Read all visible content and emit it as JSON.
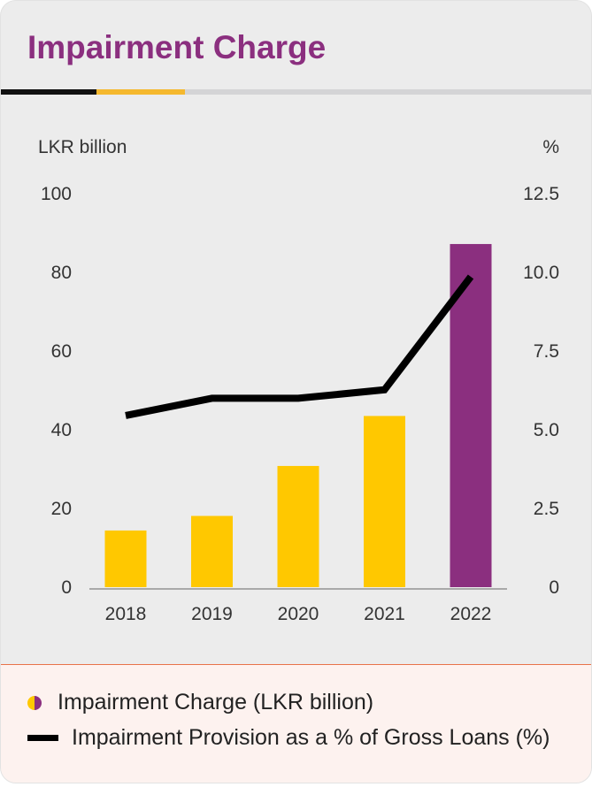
{
  "title": "Impairment Charge",
  "chart_data": {
    "type": "bar+line",
    "title": "Impairment Charge",
    "categories": [
      "2018",
      "2019",
      "2020",
      "2021",
      "2022"
    ],
    "series": [
      {
        "name": "Impairment Charge (LKR billion)",
        "type": "bar",
        "axis": "left",
        "values": [
          14.4,
          18.1,
          30.8,
          43.5,
          87.2
        ],
        "colors": [
          "#ffc800",
          "#ffc800",
          "#ffc800",
          "#ffc800",
          "#8b2f7f"
        ]
      },
      {
        "name": "Impairment Provision as a % of Gross Loans (%)",
        "type": "line",
        "axis": "right",
        "values": [
          5.45,
          6.0,
          6.0,
          6.27,
          9.86
        ],
        "color": "#000000"
      }
    ],
    "ylabel": "LKR billion",
    "ylim": [
      0,
      100
    ],
    "yticks": [
      "0",
      "20",
      "40",
      "60",
      "80",
      "100"
    ],
    "y2label": "%",
    "y2lim": [
      0,
      12.5
    ],
    "y2ticks": [
      "0",
      "2.5",
      "5.0",
      "7.5",
      "10.0",
      "12.5"
    ],
    "legend": "bottom"
  }
}
